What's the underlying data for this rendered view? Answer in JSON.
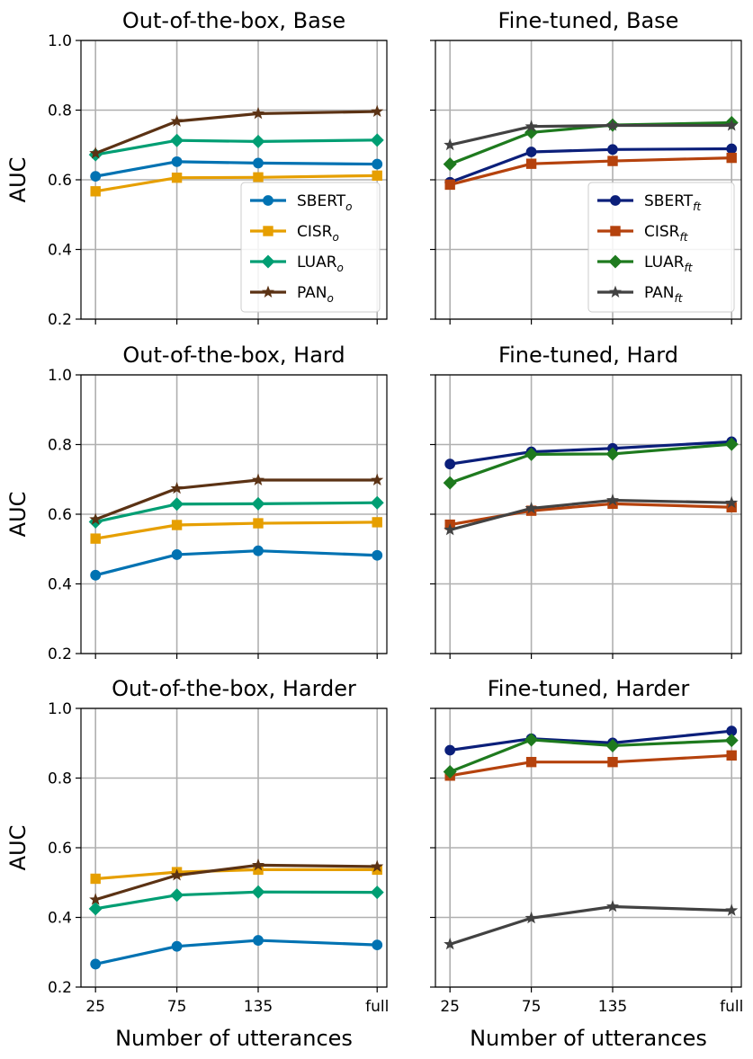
{
  "chart_data": {
    "type": "line",
    "x_tick_labels": [
      "25",
      "75",
      "135",
      "full"
    ],
    "y_tick_labels": [
      "0.2",
      "0.4",
      "0.6",
      "0.8",
      "1.0"
    ],
    "y_ticks": [
      0.2,
      0.4,
      0.6,
      0.8,
      1.0
    ],
    "ylim": [
      0.2,
      1.0
    ],
    "ylabel": "AUC",
    "xlabel": "Number of utterances",
    "grid": true,
    "legend_ooo": [
      {
        "base": "SBERT",
        "sub": "o"
      },
      {
        "base": "CISR",
        "sub": "o"
      },
      {
        "base": "LUAR",
        "sub": "o"
      },
      {
        "base": "PAN",
        "sub": "o"
      }
    ],
    "legend_ft": [
      {
        "base": "SBERT",
        "sub": "ft"
      },
      {
        "base": "CISR",
        "sub": "ft"
      },
      {
        "base": "LUAR",
        "sub": "ft"
      },
      {
        "base": "PAN",
        "sub": "ft"
      }
    ],
    "panels": [
      {
        "title": "Out-of-the-box, Base",
        "legend": "ooo",
        "legend_position": "lower-right",
        "series": [
          {
            "name": "SBERT_o",
            "color": "#0072b2",
            "marker": "circle",
            "values": [
              0.61,
              0.652,
              0.648,
              0.645
            ]
          },
          {
            "name": "CISR_o",
            "color": "#e69f00",
            "marker": "square",
            "values": [
              0.567,
              0.606,
              0.607,
              0.612
            ]
          },
          {
            "name": "LUAR_o",
            "color": "#009e73",
            "marker": "diamond",
            "values": [
              0.672,
              0.713,
              0.71,
              0.714
            ]
          },
          {
            "name": "PAN_o",
            "color": "#5b3214",
            "marker": "star",
            "values": [
              0.676,
              0.768,
              0.79,
              0.796
            ]
          }
        ]
      },
      {
        "title": "Fine-tuned, Base",
        "legend": "ft",
        "legend_position": "lower-right",
        "series": [
          {
            "name": "SBERT_ft",
            "color": "#0b1f7a",
            "marker": "circle",
            "values": [
              0.593,
              0.68,
              0.687,
              0.689
            ]
          },
          {
            "name": "CISR_ft",
            "color": "#b5420d",
            "marker": "square",
            "values": [
              0.586,
              0.646,
              0.654,
              0.663
            ]
          },
          {
            "name": "LUAR_ft",
            "color": "#1e7a1e",
            "marker": "diamond",
            "values": [
              0.645,
              0.736,
              0.757,
              0.764
            ]
          },
          {
            "name": "PAN_ft",
            "color": "#424242",
            "marker": "star",
            "values": [
              0.7,
              0.753,
              0.756,
              0.756
            ]
          }
        ]
      },
      {
        "title": "Out-of-the-box, Hard",
        "legend": "none",
        "series": [
          {
            "name": "SBERT_o",
            "color": "#0072b2",
            "marker": "circle",
            "values": [
              0.425,
              0.484,
              0.495,
              0.482
            ]
          },
          {
            "name": "CISR_o",
            "color": "#e69f00",
            "marker": "square",
            "values": [
              0.53,
              0.569,
              0.574,
              0.577
            ]
          },
          {
            "name": "LUAR_o",
            "color": "#009e73",
            "marker": "diamond",
            "values": [
              0.578,
              0.629,
              0.63,
              0.633
            ]
          },
          {
            "name": "PAN_o",
            "color": "#5b3214",
            "marker": "star",
            "values": [
              0.585,
              0.674,
              0.698,
              0.698
            ]
          }
        ]
      },
      {
        "title": "Fine-tuned, Hard",
        "legend": "none",
        "series": [
          {
            "name": "SBERT_ft",
            "color": "#0b1f7a",
            "marker": "circle",
            "values": [
              0.744,
              0.779,
              0.789,
              0.808
            ]
          },
          {
            "name": "CISR_ft",
            "color": "#b5420d",
            "marker": "square",
            "values": [
              0.57,
              0.61,
              0.63,
              0.62
            ]
          },
          {
            "name": "LUAR_ft",
            "color": "#1e7a1e",
            "marker": "diamond",
            "values": [
              0.69,
              0.772,
              0.773,
              0.801
            ]
          },
          {
            "name": "PAN_ft",
            "color": "#424242",
            "marker": "star",
            "values": [
              0.555,
              0.617,
              0.64,
              0.633
            ]
          }
        ]
      },
      {
        "title": "Out-of-the-box, Harder",
        "legend": "none",
        "series": [
          {
            "name": "SBERT_o",
            "color": "#0072b2",
            "marker": "circle",
            "values": [
              0.266,
              0.317,
              0.334,
              0.321
            ]
          },
          {
            "name": "CISR_o",
            "color": "#e69f00",
            "marker": "square",
            "values": [
              0.511,
              0.53,
              0.537,
              0.537
            ]
          },
          {
            "name": "LUAR_o",
            "color": "#009e73",
            "marker": "diamond",
            "values": [
              0.425,
              0.464,
              0.473,
              0.472
            ]
          },
          {
            "name": "PAN_o",
            "color": "#5b3214",
            "marker": "star",
            "values": [
              0.451,
              0.521,
              0.55,
              0.546
            ]
          }
        ]
      },
      {
        "title": "Fine-tuned, Harder",
        "legend": "none",
        "series": [
          {
            "name": "SBERT_ft",
            "color": "#0b1f7a",
            "marker": "circle",
            "values": [
              0.88,
              0.913,
              0.901,
              0.935
            ]
          },
          {
            "name": "CISR_ft",
            "color": "#b5420d",
            "marker": "square",
            "values": [
              0.807,
              0.846,
              0.846,
              0.865
            ]
          },
          {
            "name": "LUAR_ft",
            "color": "#1e7a1e",
            "marker": "diamond",
            "values": [
              0.818,
              0.91,
              0.893,
              0.908
            ]
          },
          {
            "name": "PAN_ft",
            "color": "#424242",
            "marker": "star",
            "values": [
              0.323,
              0.398,
              0.431,
              0.42
            ]
          }
        ]
      }
    ]
  }
}
